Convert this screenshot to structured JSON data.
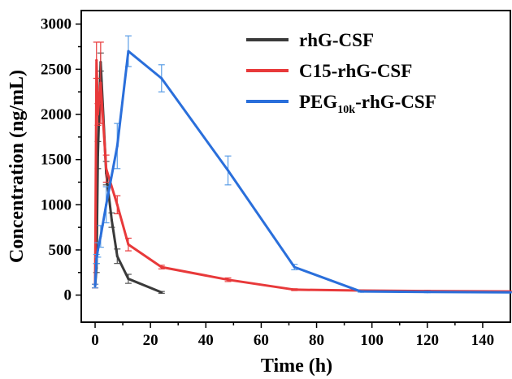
{
  "chart_data": {
    "type": "line",
    "title": "",
    "xlabel": "Time (h)",
    "ylabel": "Concentration (ng/mL)",
    "xlim": [
      -5,
      150
    ],
    "ylim": [
      -300,
      3150
    ],
    "xticks": [
      0,
      20,
      40,
      60,
      80,
      100,
      120,
      140
    ],
    "yticks": [
      0,
      500,
      1000,
      1500,
      2000,
      2500,
      3000
    ],
    "grid": false,
    "legend_position": "top-right",
    "series": [
      {
        "name": "rhG-CSF",
        "legend_main": "rhG-CSF",
        "legend_sub": "",
        "legend_tail": "",
        "color": "#3a3a3a",
        "errorbar_color": "#555555",
        "x": [
          0,
          0.5,
          1,
          2,
          4,
          6,
          8,
          12,
          24
        ],
        "y": [
          100,
          300,
          1550,
          2580,
          1350,
          830,
          430,
          180,
          30
        ],
        "err": [
          20,
          50,
          150,
          100,
          130,
          80,
          80,
          50,
          10
        ]
      },
      {
        "name": "C15-rhG-CSF",
        "legend_main": "C15-rhG-CSF",
        "legend_sub": "",
        "legend_tail": "",
        "color": "#e8393a",
        "errorbar_color": "#e8393a",
        "x": [
          0,
          0.5,
          1,
          2,
          4,
          8,
          12,
          24,
          48,
          72,
          96,
          120,
          150
        ],
        "y": [
          100,
          2600,
          2000,
          2350,
          1400,
          1000,
          560,
          310,
          170,
          60,
          50,
          45,
          40
        ],
        "err": [
          20,
          200,
          120,
          450,
          150,
          100,
          70,
          20,
          20,
          10,
          8,
          8,
          5
        ]
      },
      {
        "name": "PEG10k-rhG-CSF",
        "legend_main": "PEG",
        "legend_sub": "10k",
        "legend_tail": "-rhG-CSF",
        "color": "#2a6fdb",
        "errorbar_color": "#5a9de6",
        "x": [
          0,
          0.5,
          1,
          2,
          4,
          8,
          12,
          24,
          48,
          72,
          96,
          120,
          150
        ],
        "y": [
          100,
          400,
          500,
          650,
          1000,
          1650,
          2700,
          2400,
          1380,
          310,
          40,
          35,
          30
        ],
        "err": [
          20,
          50,
          80,
          120,
          200,
          250,
          170,
          150,
          160,
          30,
          8,
          8,
          5
        ]
      }
    ]
  }
}
